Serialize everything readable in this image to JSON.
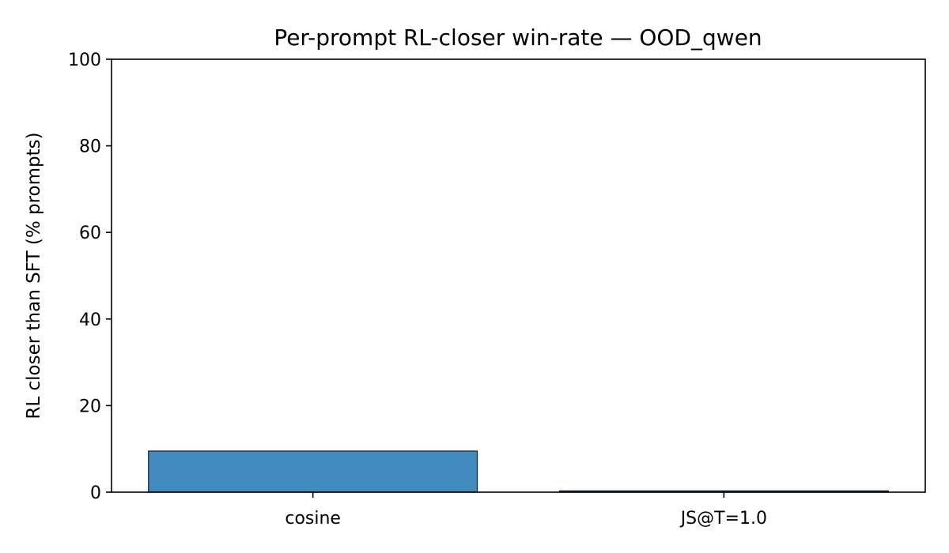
{
  "chart_data": {
    "type": "bar",
    "title": "Per-prompt RL-closer win-rate — OOD_qwen",
    "xlabel": "",
    "ylabel": "RL closer than SFT (% prompts)",
    "categories": [
      "cosine",
      "JS@T=1.0"
    ],
    "values": [
      9.5,
      0.3
    ],
    "ylim": [
      0,
      100
    ],
    "yticks": [
      0,
      20,
      40,
      60,
      80,
      100
    ],
    "grid": false,
    "bar_color": "#428bbf",
    "edge_color": "#1a1a1a"
  }
}
